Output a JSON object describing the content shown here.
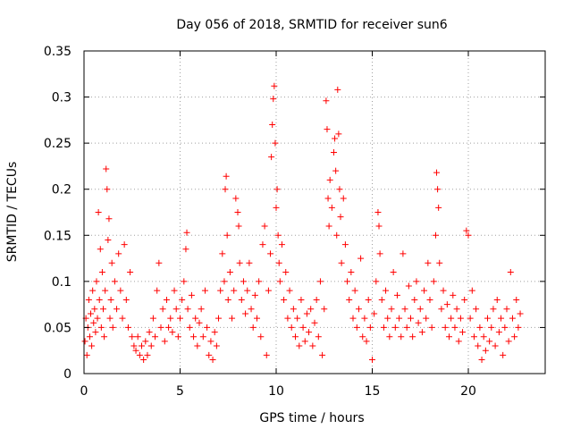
{
  "chart_data": {
    "type": "scatter",
    "title": "Day 056 of 2018, SRMTID for receiver sun6",
    "xlabel": "GPS time / hours",
    "ylabel": "SRMTID / TECUs",
    "xlim": [
      0,
      24
    ],
    "ylim": [
      0,
      0.35
    ],
    "xticks": [
      0,
      5,
      10,
      15,
      20
    ],
    "xtick_labels": [
      "0",
      "5",
      "10",
      "15",
      "20"
    ],
    "yticks": [
      0,
      0.05,
      0.1,
      0.15,
      0.2,
      0.25,
      0.3,
      0.35
    ],
    "ytick_labels": [
      "0",
      "0.05",
      "0.1",
      "0.15",
      "0.2",
      "0.25",
      "0.3",
      "0.35"
    ],
    "grid": true,
    "marker": "plus",
    "colors": {
      "series": "#ff0000",
      "grid": "#a0a0a0",
      "axis": "#000000"
    },
    "series": [
      {
        "name": "SRMTID",
        "points": [
          [
            0.05,
            0.035
          ],
          [
            0.1,
            0.06
          ],
          [
            0.15,
            0.02
          ],
          [
            0.2,
            0.05
          ],
          [
            0.25,
            0.08
          ],
          [
            0.3,
            0.04
          ],
          [
            0.35,
            0.065
          ],
          [
            0.4,
            0.03
          ],
          [
            0.45,
            0.09
          ],
          [
            0.5,
            0.055
          ],
          [
            0.55,
            0.07
          ],
          [
            0.6,
            0.045
          ],
          [
            0.65,
            0.1
          ],
          [
            0.7,
            0.06
          ],
          [
            0.75,
            0.175
          ],
          [
            0.8,
            0.08
          ],
          [
            0.85,
            0.135
          ],
          [
            0.9,
            0.05
          ],
          [
            0.95,
            0.11
          ],
          [
            1.0,
            0.07
          ],
          [
            1.05,
            0.04
          ],
          [
            1.1,
            0.09
          ],
          [
            1.15,
            0.222
          ],
          [
            1.2,
            0.2
          ],
          [
            1.25,
            0.145
          ],
          [
            1.3,
            0.168
          ],
          [
            1.35,
            0.06
          ],
          [
            1.4,
            0.08
          ],
          [
            1.45,
            0.12
          ],
          [
            1.5,
            0.05
          ],
          [
            1.6,
            0.1
          ],
          [
            1.7,
            0.07
          ],
          [
            1.8,
            0.13
          ],
          [
            1.9,
            0.09
          ],
          [
            2.0,
            0.06
          ],
          [
            2.1,
            0.14
          ],
          [
            2.2,
            0.08
          ],
          [
            2.3,
            0.05
          ],
          [
            2.4,
            0.11
          ],
          [
            2.5,
            0.04
          ],
          [
            2.6,
            0.03
          ],
          [
            2.7,
            0.025
          ],
          [
            2.8,
            0.04
          ],
          [
            2.9,
            0.02
          ],
          [
            3.0,
            0.03
          ],
          [
            3.1,
            0.015
          ],
          [
            3.2,
            0.035
          ],
          [
            3.3,
            0.02
          ],
          [
            3.4,
            0.045
          ],
          [
            3.5,
            0.03
          ],
          [
            3.6,
            0.06
          ],
          [
            3.7,
            0.04
          ],
          [
            3.8,
            0.09
          ],
          [
            3.9,
            0.12
          ],
          [
            4.0,
            0.05
          ],
          [
            4.1,
            0.07
          ],
          [
            4.2,
            0.035
          ],
          [
            4.3,
            0.08
          ],
          [
            4.4,
            0.05
          ],
          [
            4.5,
            0.06
          ],
          [
            4.6,
            0.045
          ],
          [
            4.7,
            0.09
          ],
          [
            4.8,
            0.07
          ],
          [
            4.9,
            0.04
          ],
          [
            5.0,
            0.06
          ],
          [
            5.1,
            0.08
          ],
          [
            5.2,
            0.1
          ],
          [
            5.3,
            0.135
          ],
          [
            5.35,
            0.153
          ],
          [
            5.4,
            0.07
          ],
          [
            5.5,
            0.05
          ],
          [
            5.6,
            0.085
          ],
          [
            5.7,
            0.04
          ],
          [
            5.8,
            0.06
          ],
          [
            5.9,
            0.03
          ],
          [
            6.0,
            0.055
          ],
          [
            6.1,
            0.07
          ],
          [
            6.2,
            0.04
          ],
          [
            6.3,
            0.09
          ],
          [
            6.4,
            0.05
          ],
          [
            6.5,
            0.02
          ],
          [
            6.6,
            0.035
          ],
          [
            6.7,
            0.015
          ],
          [
            6.8,
            0.045
          ],
          [
            6.9,
            0.03
          ],
          [
            7.0,
            0.06
          ],
          [
            7.1,
            0.09
          ],
          [
            7.2,
            0.13
          ],
          [
            7.3,
            0.1
          ],
          [
            7.35,
            0.2
          ],
          [
            7.4,
            0.214
          ],
          [
            7.45,
            0.15
          ],
          [
            7.5,
            0.08
          ],
          [
            7.6,
            0.11
          ],
          [
            7.7,
            0.06
          ],
          [
            7.8,
            0.09
          ],
          [
            7.9,
            0.19
          ],
          [
            8.0,
            0.175
          ],
          [
            8.05,
            0.16
          ],
          [
            8.1,
            0.12
          ],
          [
            8.2,
            0.08
          ],
          [
            8.3,
            0.1
          ],
          [
            8.4,
            0.065
          ],
          [
            8.5,
            0.09
          ],
          [
            8.6,
            0.12
          ],
          [
            8.7,
            0.07
          ],
          [
            8.8,
            0.05
          ],
          [
            8.9,
            0.085
          ],
          [
            9.0,
            0.06
          ],
          [
            9.1,
            0.1
          ],
          [
            9.2,
            0.04
          ],
          [
            9.3,
            0.14
          ],
          [
            9.4,
            0.16
          ],
          [
            9.5,
            0.02
          ],
          [
            9.6,
            0.09
          ],
          [
            9.7,
            0.13
          ],
          [
            9.75,
            0.235
          ],
          [
            9.8,
            0.27
          ],
          [
            9.85,
            0.298
          ],
          [
            9.9,
            0.312
          ],
          [
            9.95,
            0.25
          ],
          [
            10.0,
            0.18
          ],
          [
            10.05,
            0.2
          ],
          [
            10.1,
            0.15
          ],
          [
            10.15,
            0.12
          ],
          [
            10.2,
            0.1
          ],
          [
            10.3,
            0.14
          ],
          [
            10.4,
            0.08
          ],
          [
            10.5,
            0.11
          ],
          [
            10.6,
            0.06
          ],
          [
            10.7,
            0.09
          ],
          [
            10.8,
            0.05
          ],
          [
            10.9,
            0.07
          ],
          [
            11.0,
            0.04
          ],
          [
            11.1,
            0.06
          ],
          [
            11.2,
            0.03
          ],
          [
            11.3,
            0.08
          ],
          [
            11.4,
            0.05
          ],
          [
            11.5,
            0.035
          ],
          [
            11.6,
            0.065
          ],
          [
            11.7,
            0.045
          ],
          [
            11.8,
            0.07
          ],
          [
            11.9,
            0.03
          ],
          [
            12.0,
            0.055
          ],
          [
            12.1,
            0.08
          ],
          [
            12.2,
            0.04
          ],
          [
            12.3,
            0.1
          ],
          [
            12.4,
            0.02
          ],
          [
            12.5,
            0.07
          ],
          [
            12.6,
            0.296
          ],
          [
            12.65,
            0.265
          ],
          [
            12.7,
            0.19
          ],
          [
            12.75,
            0.16
          ],
          [
            12.8,
            0.21
          ],
          [
            12.9,
            0.18
          ],
          [
            13.0,
            0.24
          ],
          [
            13.05,
            0.255
          ],
          [
            13.1,
            0.22
          ],
          [
            13.15,
            0.15
          ],
          [
            13.2,
            0.308
          ],
          [
            13.25,
            0.26
          ],
          [
            13.3,
            0.2
          ],
          [
            13.35,
            0.17
          ],
          [
            13.4,
            0.12
          ],
          [
            13.5,
            0.19
          ],
          [
            13.6,
            0.14
          ],
          [
            13.7,
            0.1
          ],
          [
            13.8,
            0.08
          ],
          [
            13.9,
            0.11
          ],
          [
            14.0,
            0.06
          ],
          [
            14.1,
            0.09
          ],
          [
            14.2,
            0.05
          ],
          [
            14.3,
            0.07
          ],
          [
            14.4,
            0.125
          ],
          [
            14.5,
            0.04
          ],
          [
            14.6,
            0.06
          ],
          [
            14.7,
            0.035
          ],
          [
            14.8,
            0.08
          ],
          [
            14.9,
            0.05
          ],
          [
            15.0,
            0.015
          ],
          [
            15.1,
            0.065
          ],
          [
            15.2,
            0.1
          ],
          [
            15.3,
            0.175
          ],
          [
            15.35,
            0.16
          ],
          [
            15.4,
            0.13
          ],
          [
            15.5,
            0.08
          ],
          [
            15.6,
            0.05
          ],
          [
            15.7,
            0.09
          ],
          [
            15.8,
            0.06
          ],
          [
            15.9,
            0.04
          ],
          [
            16.0,
            0.07
          ],
          [
            16.1,
            0.11
          ],
          [
            16.2,
            0.05
          ],
          [
            16.3,
            0.085
          ],
          [
            16.4,
            0.06
          ],
          [
            16.5,
            0.04
          ],
          [
            16.6,
            0.13
          ],
          [
            16.7,
            0.07
          ],
          [
            16.8,
            0.05
          ],
          [
            16.9,
            0.095
          ],
          [
            17.0,
            0.06
          ],
          [
            17.1,
            0.04
          ],
          [
            17.2,
            0.08
          ],
          [
            17.3,
            0.1
          ],
          [
            17.4,
            0.055
          ],
          [
            17.5,
            0.07
          ],
          [
            17.6,
            0.045
          ],
          [
            17.7,
            0.09
          ],
          [
            17.8,
            0.06
          ],
          [
            17.9,
            0.12
          ],
          [
            18.0,
            0.08
          ],
          [
            18.1,
            0.05
          ],
          [
            18.2,
            0.1
          ],
          [
            18.3,
            0.15
          ],
          [
            18.35,
            0.218
          ],
          [
            18.4,
            0.2
          ],
          [
            18.45,
            0.18
          ],
          [
            18.5,
            0.12
          ],
          [
            18.6,
            0.07
          ],
          [
            18.7,
            0.09
          ],
          [
            18.8,
            0.05
          ],
          [
            18.9,
            0.075
          ],
          [
            19.0,
            0.04
          ],
          [
            19.1,
            0.06
          ],
          [
            19.2,
            0.085
          ],
          [
            19.3,
            0.05
          ],
          [
            19.4,
            0.07
          ],
          [
            19.5,
            0.035
          ],
          [
            19.6,
            0.06
          ],
          [
            19.7,
            0.045
          ],
          [
            19.8,
            0.08
          ],
          [
            19.9,
            0.155
          ],
          [
            20.0,
            0.15
          ],
          [
            20.1,
            0.06
          ],
          [
            20.2,
            0.09
          ],
          [
            20.3,
            0.04
          ],
          [
            20.4,
            0.07
          ],
          [
            20.5,
            0.03
          ],
          [
            20.6,
            0.05
          ],
          [
            20.7,
            0.015
          ],
          [
            20.8,
            0.04
          ],
          [
            20.9,
            0.025
          ],
          [
            21.0,
            0.06
          ],
          [
            21.1,
            0.035
          ],
          [
            21.2,
            0.05
          ],
          [
            21.3,
            0.07
          ],
          [
            21.4,
            0.03
          ],
          [
            21.5,
            0.08
          ],
          [
            21.6,
            0.045
          ],
          [
            21.7,
            0.06
          ],
          [
            21.8,
            0.02
          ],
          [
            21.9,
            0.05
          ],
          [
            22.0,
            0.07
          ],
          [
            22.1,
            0.035
          ],
          [
            22.2,
            0.11
          ],
          [
            22.3,
            0.06
          ],
          [
            22.4,
            0.04
          ],
          [
            22.5,
            0.08
          ],
          [
            22.6,
            0.05
          ],
          [
            22.7,
            0.065
          ]
        ]
      }
    ]
  }
}
